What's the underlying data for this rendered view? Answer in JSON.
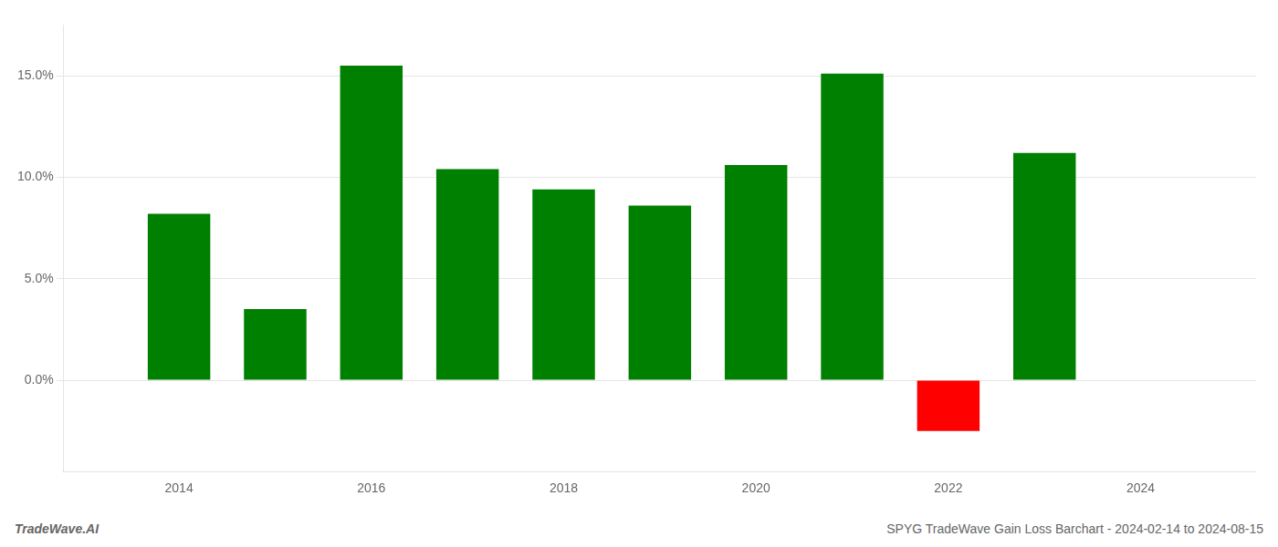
{
  "chart_data": {
    "type": "bar",
    "x": [
      2014,
      2015,
      2016,
      2017,
      2018,
      2019,
      2020,
      2021,
      2022,
      2023
    ],
    "values": [
      0.082,
      0.035,
      0.155,
      0.104,
      0.094,
      0.086,
      0.106,
      0.151,
      -0.025,
      0.112
    ],
    "colors": [
      "#008000",
      "#008000",
      "#008000",
      "#008000",
      "#008000",
      "#008000",
      "#008000",
      "#008000",
      "#ff0000",
      "#008000"
    ],
    "xlim": [
      2012.8,
      2025.2
    ],
    "xticks": [
      2014,
      2016,
      2018,
      2020,
      2022,
      2024
    ],
    "ylim": [
      -0.045,
      0.175
    ],
    "yticks": [
      {
        "value": 0.0,
        "label": "0.0%"
      },
      {
        "value": 0.05,
        "label": "5.0%"
      },
      {
        "value": 0.1,
        "label": "10.0%"
      },
      {
        "value": 0.15,
        "label": "15.0%"
      }
    ],
    "grid": "y",
    "annotations": [
      "TradeWave.AI",
      "SPYG TradeWave Gain Loss Barchart - 2024-02-14 to 2024-08-15"
    ]
  }
}
